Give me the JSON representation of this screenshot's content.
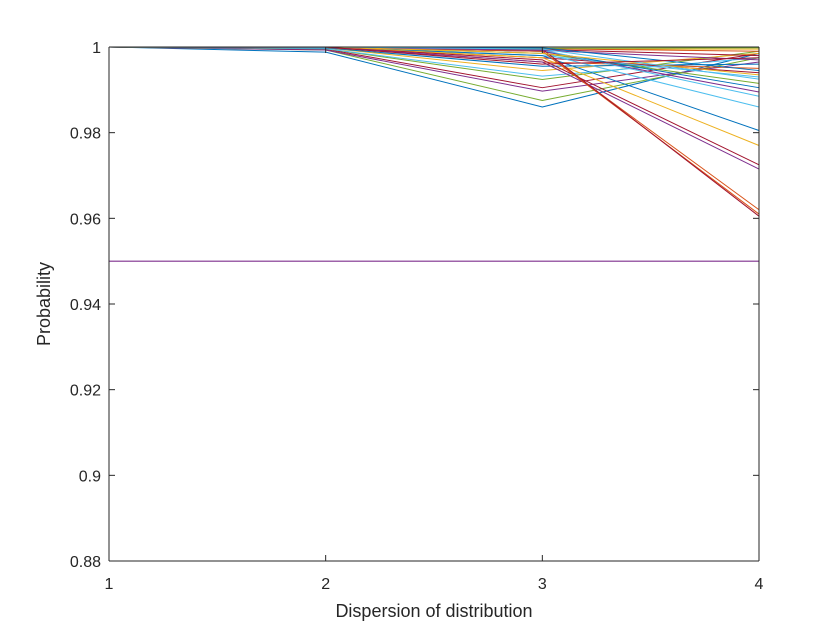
{
  "chart_data": {
    "type": "line",
    "title": "",
    "xlabel": "Dispersion of distribution",
    "ylabel": "Probability",
    "xlim": [
      1,
      4
    ],
    "ylim": [
      0.88,
      1
    ],
    "x": [
      1,
      2,
      3,
      4
    ],
    "xticks": [
      1,
      2,
      3,
      4
    ],
    "xtick_labels": [
      "1",
      "2",
      "3",
      "4"
    ],
    "yticks": [
      0.88,
      0.9,
      0.92,
      0.94,
      0.96,
      0.98,
      1
    ],
    "ytick_labels": [
      "0.88",
      "0.9",
      "0.92",
      "0.94",
      "0.96",
      "0.98",
      "1"
    ],
    "grid": false,
    "legend": "none",
    "threshold": {
      "y": 0.95,
      "color": "#7E2F8E"
    },
    "series": [
      {
        "values": [
          1,
          0.9988,
          0.986,
          0.9985
        ],
        "color": "#0072BD"
      },
      {
        "values": [
          1,
          0.9993,
          0.9875,
          0.9975
        ],
        "color": "#77AC30"
      },
      {
        "values": [
          1,
          0.9993,
          0.9897,
          0.9965
        ],
        "color": "#7E2F8E"
      },
      {
        "values": [
          1,
          0.9995,
          0.9905,
          0.9985
        ],
        "color": "#A2142F"
      },
      {
        "values": [
          1,
          0.9996,
          0.9924,
          0.999
        ],
        "color": "#77AC30"
      },
      {
        "values": [
          1,
          0.9996,
          0.9932,
          0.9975
        ],
        "color": "#4DBEEE"
      },
      {
        "values": [
          1,
          0.9998,
          0.9945,
          0.9985
        ],
        "color": "#EDB120"
      },
      {
        "values": [
          1,
          0.9998,
          0.9955,
          0.996
        ],
        "color": "#0072BD"
      },
      {
        "values": [
          1,
          0.9999,
          0.9965,
          0.995
        ],
        "color": "#D95319"
      },
      {
        "values": [
          1,
          0.9999,
          0.9975,
          0.994
        ],
        "color": "#A2142F"
      },
      {
        "values": [
          1,
          0.9999,
          0.998,
          0.993
        ],
        "color": "#4DBEEE"
      },
      {
        "values": [
          1,
          1.0,
          0.9985,
          0.9915
        ],
        "color": "#77AC30"
      },
      {
        "values": [
          1,
          1.0,
          0.999,
          0.9905
        ],
        "color": "#0072BD"
      },
      {
        "values": [
          1,
          1.0,
          0.999,
          0.9895
        ],
        "color": "#7E2F8E"
      },
      {
        "values": [
          1,
          1.0,
          0.9993,
          0.9885
        ],
        "color": "#4DBEEE"
      },
      {
        "values": [
          1,
          1.0,
          0.9985,
          0.986
        ],
        "color": "#4DBEEE"
      },
      {
        "values": [
          1,
          1.0,
          0.998,
          0.9805
        ],
        "color": "#0072BD"
      },
      {
        "values": [
          1,
          1.0,
          0.9975,
          0.977
        ],
        "color": "#EDB120"
      },
      {
        "values": [
          1,
          1.0,
          0.997,
          0.9725
        ],
        "color": "#A2142F"
      },
      {
        "values": [
          1,
          1.0,
          0.9965,
          0.9715
        ],
        "color": "#7E2F8E"
      },
      {
        "values": [
          1,
          1.0,
          0.999,
          0.962
        ],
        "color": "#D95319"
      },
      {
        "values": [
          1,
          1.0,
          0.999,
          0.961
        ],
        "color": "#D95319"
      },
      {
        "values": [
          1,
          1.0,
          0.9995,
          0.9605
        ],
        "color": "#A2142F"
      },
      {
        "values": [
          1,
          1.0,
          0.9995,
          0.9995
        ],
        "color": "#EDB120"
      },
      {
        "values": [
          1,
          1.0,
          0.9996,
          0.999
        ],
        "color": "#D95319"
      },
      {
        "values": [
          1,
          1.0,
          0.9994,
          0.998
        ],
        "color": "#A2142F"
      },
      {
        "values": [
          1,
          1.0,
          0.9992,
          0.997
        ],
        "color": "#7E2F8E"
      },
      {
        "values": [
          1,
          1.0,
          0.9997,
          0.9998
        ],
        "color": "#77AC30"
      },
      {
        "values": [
          1,
          1.0,
          0.9998,
          0.9945
        ],
        "color": "#0072BD"
      },
      {
        "values": [
          1,
          1.0,
          0.9985,
          0.9935
        ],
        "color": "#EDB120"
      },
      {
        "values": [
          1,
          1.0,
          0.9995,
          0.9925
        ],
        "color": "#4DBEEE"
      },
      {
        "values": [
          1,
          1.0,
          0.996,
          0.9975
        ],
        "color": "#A2142F"
      }
    ]
  }
}
